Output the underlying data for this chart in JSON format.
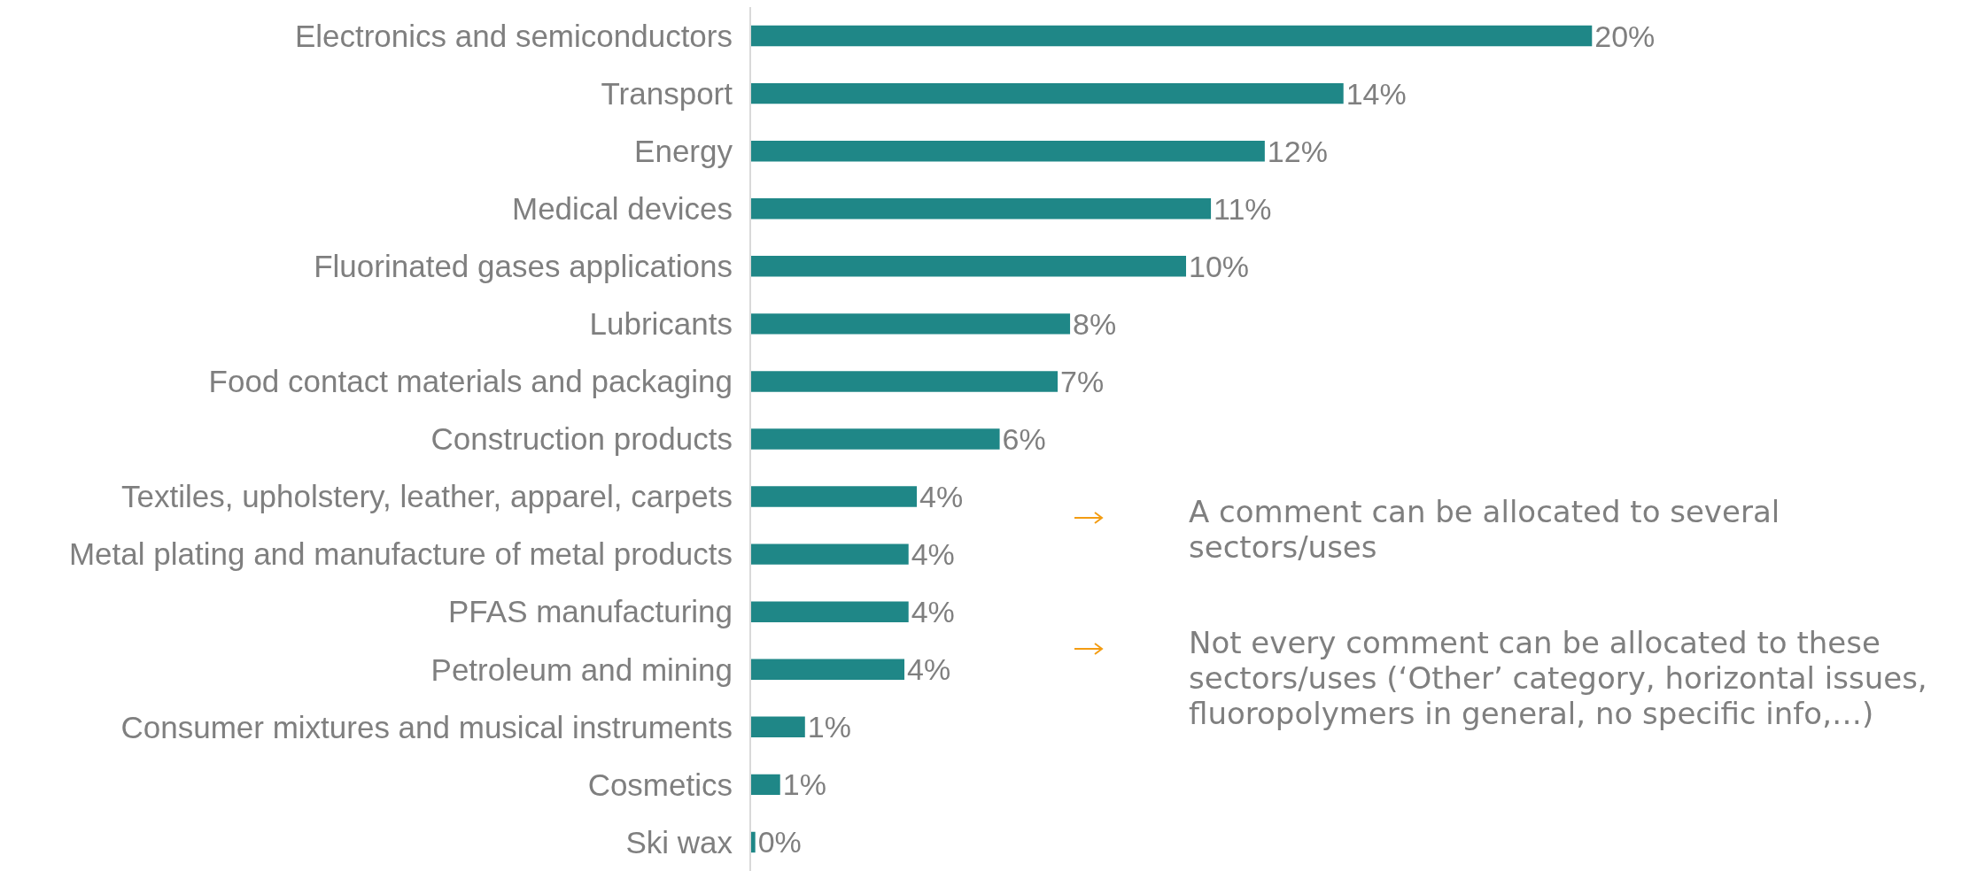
{
  "chart_data": {
    "type": "bar",
    "orientation": "horizontal",
    "categories": [
      "Electronics and semiconductors",
      "Transport",
      "Energy",
      "Medical devices",
      "Fluorinated gases applications",
      "Lubricants",
      "Food contact materials and packaging",
      "Construction products",
      "Textiles, upholstery, leather, apparel, carpets",
      "Metal plating and manufacture of metal products",
      "PFAS manufacturing",
      "Petroleum and mining",
      "Consumer mixtures and musical instruments",
      "Cosmetics",
      "Ski wax"
    ],
    "values": [
      20.3,
      14.3,
      12.4,
      11.1,
      10.5,
      7.7,
      7.4,
      6.0,
      4.0,
      3.8,
      3.8,
      3.7,
      1.3,
      0.7,
      0.1
    ],
    "value_labels": [
      "20%",
      "14%",
      "12%",
      "11%",
      "10%",
      "8%",
      "7%",
      "6%",
      "4%",
      "4%",
      "4%",
      "4%",
      "1%",
      "1%",
      "0%"
    ],
    "color": "#1f8787",
    "annotations": [
      "A comment can be allocated to several sectors/uses",
      "Not every comment can be allocated to these sectors/uses (‘Other’ category, horizontal issues, fluoropolymers in general, no specific info,…)"
    ]
  }
}
